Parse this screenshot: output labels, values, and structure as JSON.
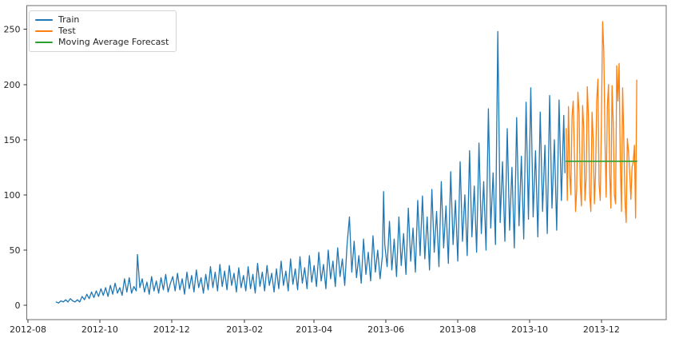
{
  "figure": {
    "background": "#ffffff",
    "spine_color": "#6e6e6e",
    "tick_color": "#333333",
    "text_color": "#262626"
  },
  "legend": {
    "position": "upper-left",
    "entries": [
      {
        "label": "Train",
        "color": "#1f77b4"
      },
      {
        "label": "Test",
        "color": "#ff7f0e"
      },
      {
        "label": "Moving Average Forecast",
        "color": "#2ca02c"
      }
    ]
  },
  "chart_data": {
    "type": "line",
    "title": "",
    "xlabel": "",
    "ylabel": "",
    "grid": false,
    "x_unit": "days since 2012-08-01",
    "xlim_days": [
      -1,
      542
    ],
    "ylim": [
      -13,
      271.5
    ],
    "x_ticks": [
      {
        "day": 0,
        "label": "2012-08"
      },
      {
        "day": 61,
        "label": "2012-10"
      },
      {
        "day": 122,
        "label": "2012-12"
      },
      {
        "day": 184,
        "label": "2013-02"
      },
      {
        "day": 243,
        "label": "2013-04"
      },
      {
        "day": 304,
        "label": "2013-06"
      },
      {
        "day": 365,
        "label": "2013-08"
      },
      {
        "day": 426,
        "label": "2013-10"
      },
      {
        "day": 487,
        "label": "2013-12"
      }
    ],
    "y_ticks": [
      0,
      50,
      100,
      150,
      200,
      250
    ],
    "series": [
      {
        "name": "Train",
        "color": "#1f77b4",
        "linewidth": 1.3,
        "points": [
          [
            24,
            3
          ],
          [
            26,
            2
          ],
          [
            28,
            4
          ],
          [
            30,
            3
          ],
          [
            32,
            5
          ],
          [
            34,
            3
          ],
          [
            36,
            6
          ],
          [
            38,
            4
          ],
          [
            40,
            3
          ],
          [
            42,
            5
          ],
          [
            44,
            3
          ],
          [
            46,
            8
          ],
          [
            48,
            5
          ],
          [
            50,
            10
          ],
          [
            52,
            6
          ],
          [
            54,
            12
          ],
          [
            56,
            7
          ],
          [
            58,
            13
          ],
          [
            60,
            8
          ],
          [
            62,
            15
          ],
          [
            64,
            9
          ],
          [
            66,
            16
          ],
          [
            68,
            8
          ],
          [
            70,
            18
          ],
          [
            72,
            10
          ],
          [
            74,
            20
          ],
          [
            76,
            11
          ],
          [
            78,
            16
          ],
          [
            80,
            9
          ],
          [
            82,
            24
          ],
          [
            84,
            12
          ],
          [
            86,
            25
          ],
          [
            88,
            11
          ],
          [
            90,
            17
          ],
          [
            92,
            13
          ],
          [
            93,
            46
          ],
          [
            95,
            16
          ],
          [
            97,
            24
          ],
          [
            99,
            12
          ],
          [
            101,
            21
          ],
          [
            103,
            10
          ],
          [
            105,
            26
          ],
          [
            107,
            13
          ],
          [
            109,
            22
          ],
          [
            111,
            11
          ],
          [
            113,
            25
          ],
          [
            115,
            14
          ],
          [
            117,
            28
          ],
          [
            119,
            12
          ],
          [
            121,
            20
          ],
          [
            123,
            26
          ],
          [
            125,
            13
          ],
          [
            127,
            29
          ],
          [
            129,
            14
          ],
          [
            131,
            24
          ],
          [
            133,
            10
          ],
          [
            135,
            30
          ],
          [
            137,
            15
          ],
          [
            139,
            27
          ],
          [
            141,
            12
          ],
          [
            143,
            32
          ],
          [
            145,
            16
          ],
          [
            147,
            25
          ],
          [
            149,
            11
          ],
          [
            151,
            28
          ],
          [
            153,
            14
          ],
          [
            155,
            35
          ],
          [
            157,
            16
          ],
          [
            159,
            30
          ],
          [
            161,
            13
          ],
          [
            163,
            37
          ],
          [
            165,
            17
          ],
          [
            167,
            31
          ],
          [
            169,
            14
          ],
          [
            171,
            36
          ],
          [
            173,
            18
          ],
          [
            175,
            29
          ],
          [
            177,
            12
          ],
          [
            179,
            34
          ],
          [
            181,
            16
          ],
          [
            183,
            27
          ],
          [
            185,
            13
          ],
          [
            187,
            35
          ],
          [
            189,
            15
          ],
          [
            191,
            28
          ],
          [
            193,
            11
          ],
          [
            195,
            38
          ],
          [
            197,
            17
          ],
          [
            199,
            30
          ],
          [
            201,
            13
          ],
          [
            203,
            36
          ],
          [
            205,
            18
          ],
          [
            207,
            29
          ],
          [
            209,
            12
          ],
          [
            211,
            33
          ],
          [
            213,
            15
          ],
          [
            215,
            40
          ],
          [
            217,
            18
          ],
          [
            219,
            31
          ],
          [
            221,
            13
          ],
          [
            223,
            42
          ],
          [
            225,
            19
          ],
          [
            227,
            33
          ],
          [
            229,
            14
          ],
          [
            231,
            44
          ],
          [
            233,
            20
          ],
          [
            235,
            34
          ],
          [
            237,
            15
          ],
          [
            239,
            45
          ],
          [
            241,
            21
          ],
          [
            243,
            36
          ],
          [
            245,
            17
          ],
          [
            247,
            48
          ],
          [
            249,
            22
          ],
          [
            251,
            37
          ],
          [
            253,
            15
          ],
          [
            255,
            50
          ],
          [
            257,
            24
          ],
          [
            259,
            40
          ],
          [
            261,
            17
          ],
          [
            263,
            52
          ],
          [
            265,
            26
          ],
          [
            267,
            42
          ],
          [
            269,
            18
          ],
          [
            271,
            55
          ],
          [
            273,
            80
          ],
          [
            275,
            30
          ],
          [
            277,
            58
          ],
          [
            279,
            25
          ],
          [
            281,
            45
          ],
          [
            283,
            20
          ],
          [
            285,
            60
          ],
          [
            287,
            28
          ],
          [
            289,
            48
          ],
          [
            291,
            22
          ],
          [
            293,
            63
          ],
          [
            295,
            30
          ],
          [
            297,
            50
          ],
          [
            299,
            24
          ],
          [
            301,
            45
          ],
          [
            302,
            103
          ],
          [
            303,
            55
          ],
          [
            305,
            35
          ],
          [
            307,
            76
          ],
          [
            309,
            32
          ],
          [
            311,
            60
          ],
          [
            313,
            26
          ],
          [
            315,
            80
          ],
          [
            317,
            36
          ],
          [
            319,
            65
          ],
          [
            321,
            28
          ],
          [
            323,
            88
          ],
          [
            325,
            40
          ],
          [
            327,
            70
          ],
          [
            329,
            30
          ],
          [
            331,
            95
          ],
          [
            333,
            45
          ],
          [
            335,
            99
          ],
          [
            337,
            42
          ],
          [
            339,
            80
          ],
          [
            341,
            32
          ],
          [
            343,
            105
          ],
          [
            345,
            48
          ],
          [
            347,
            85
          ],
          [
            349,
            35
          ],
          [
            351,
            112
          ],
          [
            353,
            52
          ],
          [
            355,
            90
          ],
          [
            357,
            38
          ],
          [
            359,
            121
          ],
          [
            361,
            55
          ],
          [
            363,
            95
          ],
          [
            365,
            40
          ],
          [
            367,
            130
          ],
          [
            369,
            58
          ],
          [
            371,
            100
          ],
          [
            373,
            45
          ],
          [
            375,
            140
          ],
          [
            377,
            62
          ],
          [
            379,
            108
          ],
          [
            381,
            48
          ],
          [
            383,
            147
          ],
          [
            385,
            65
          ],
          [
            387,
            112
          ],
          [
            389,
            50
          ],
          [
            391,
            178
          ],
          [
            393,
            70
          ],
          [
            395,
            120
          ],
          [
            397,
            55
          ],
          [
            399,
            248
          ],
          [
            401,
            75
          ],
          [
            403,
            130
          ],
          [
            405,
            58
          ],
          [
            407,
            160
          ],
          [
            409,
            68
          ],
          [
            411,
            125
          ],
          [
            413,
            52
          ],
          [
            415,
            170
          ],
          [
            417,
            72
          ],
          [
            419,
            135
          ],
          [
            421,
            60
          ],
          [
            423,
            184
          ],
          [
            425,
            78
          ],
          [
            427,
            197
          ],
          [
            429,
            80
          ],
          [
            431,
            140
          ],
          [
            433,
            62
          ],
          [
            435,
            175
          ],
          [
            437,
            85
          ],
          [
            439,
            145
          ],
          [
            441,
            65
          ],
          [
            443,
            190
          ],
          [
            445,
            88
          ],
          [
            447,
            150
          ],
          [
            449,
            68
          ],
          [
            451,
            186
          ],
          [
            453,
            95
          ],
          [
            455,
            172
          ],
          [
            456,
            120
          ]
        ]
      },
      {
        "name": "Test",
        "color": "#ff7f0e",
        "linewidth": 1.3,
        "points": [
          [
            457,
            160
          ],
          [
            458,
            95
          ],
          [
            459,
            180
          ],
          [
            460,
            120
          ],
          [
            461,
            100
          ],
          [
            462,
            170
          ],
          [
            463,
            185
          ],
          [
            464,
            140
          ],
          [
            465,
            85
          ],
          [
            466,
            105
          ],
          [
            467,
            193
          ],
          [
            468,
            175
          ],
          [
            469,
            110
          ],
          [
            470,
            90
          ],
          [
            471,
            181
          ],
          [
            472,
            160
          ],
          [
            473,
            95
          ],
          [
            474,
            115
          ],
          [
            475,
            198
          ],
          [
            476,
            170
          ],
          [
            477,
            100
          ],
          [
            478,
            85
          ],
          [
            479,
            175
          ],
          [
            480,
            150
          ],
          [
            481,
            92
          ],
          [
            482,
            120
          ],
          [
            483,
            186
          ],
          [
            484,
            205
          ],
          [
            485,
            110
          ],
          [
            486,
            95
          ],
          [
            487,
            170
          ],
          [
            488,
            257
          ],
          [
            489,
            230
          ],
          [
            490,
            150
          ],
          [
            491,
            98
          ],
          [
            492,
            180
          ],
          [
            493,
            200
          ],
          [
            494,
            120
          ],
          [
            495,
            88
          ],
          [
            496,
            199
          ],
          [
            497,
            165
          ],
          [
            498,
            100
          ],
          [
            499,
            92
          ],
          [
            500,
            217
          ],
          [
            501,
            185
          ],
          [
            502,
            219
          ],
          [
            503,
            130
          ],
          [
            504,
            85
          ],
          [
            505,
            197
          ],
          [
            506,
            150
          ],
          [
            507,
            95
          ],
          [
            508,
            75
          ],
          [
            509,
            151
          ],
          [
            510,
            139
          ],
          [
            511,
            120
          ],
          [
            512,
            96
          ],
          [
            513,
            125
          ],
          [
            514,
            130
          ],
          [
            515,
            145
          ],
          [
            516,
            79
          ],
          [
            517,
            204
          ]
        ]
      },
      {
        "name": "Moving Average Forecast",
        "color": "#2ca02c",
        "linewidth": 1.6,
        "points": [
          [
            457,
            130.5
          ],
          [
            517,
            130.5
          ]
        ]
      }
    ]
  }
}
